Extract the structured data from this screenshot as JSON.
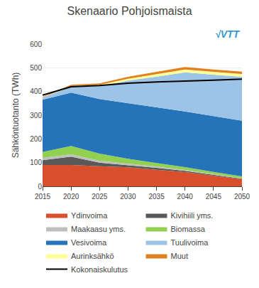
{
  "chart_data": {
    "type": "area",
    "title": "Skenaario Pohjoismaista",
    "ylabel": "Sähköntuotanto (TWh)",
    "x": [
      2015,
      2020,
      2025,
      2030,
      2035,
      2040,
      2045,
      2050
    ],
    "stacked": true,
    "series": [
      {
        "name": "Ydinvoima",
        "color": "#d94f2b",
        "values": [
          90,
          90,
          85,
          80,
          70,
          60,
          45,
          30
        ]
      },
      {
        "name": "Kivihiili yms.",
        "color": "#595959",
        "values": [
          20,
          35,
          15,
          10,
          8,
          5,
          3,
          2
        ]
      },
      {
        "name": "Maakaasu yms.",
        "color": "#bfbfbf",
        "values": [
          10,
          10,
          8,
          6,
          5,
          4,
          3,
          2
        ]
      },
      {
        "name": "Biomassa",
        "color": "#92d050",
        "values": [
          25,
          35,
          30,
          20,
          15,
          12,
          10,
          8
        ]
      },
      {
        "name": "Vesivoima",
        "color": "#2573b8",
        "values": [
          220,
          225,
          230,
          235,
          235,
          235,
          235,
          235
        ]
      },
      {
        "name": "Tuulivoima",
        "color": "#9dc3e6",
        "values": [
          10,
          25,
          55,
          95,
          130,
          165,
          175,
          185
        ]
      },
      {
        "name": "Aurinksähkö",
        "color": "#ffff99",
        "values": [
          1,
          3,
          5,
          8,
          10,
          12,
          12,
          12
        ]
      },
      {
        "name": "Muut",
        "color": "#e08020",
        "values": [
          2,
          5,
          6,
          8,
          10,
          10,
          10,
          10
        ]
      },
      {
        "name": "Kokonaiskulutus",
        "type": "line",
        "color": "#000000",
        "values": [
          385,
          420,
          425,
          435,
          440,
          445,
          448,
          452
        ]
      }
    ],
    "xlim": [
      2015,
      2050
    ],
    "xticks": [
      2015,
      2020,
      2025,
      2030,
      2035,
      2040,
      2045,
      2050
    ],
    "ylim": [
      0,
      600
    ],
    "yticks": [
      0,
      100,
      200,
      300,
      400,
      500,
      600
    ],
    "grid": "y",
    "legend": "bottom",
    "annotations": [
      {
        "text": "√VTT",
        "color": "#3399cc"
      }
    ]
  }
}
